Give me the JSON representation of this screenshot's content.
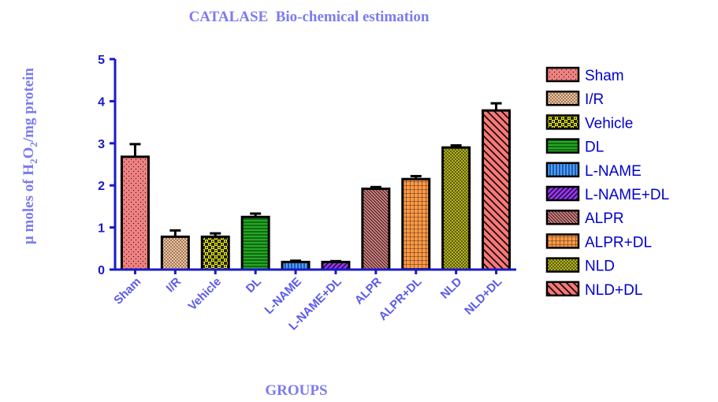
{
  "chart_data": {
    "type": "bar",
    "title": "CATALASE  Bio-chemical estimation",
    "xlabel": "GROUPS",
    "ylabel": {
      "prefix": "μ moles of H",
      "sub1": "2",
      "mid": "O",
      "sub2": "2",
      "suffix": "/mg protein"
    },
    "ylim": [
      0,
      5
    ],
    "yticks": [
      "0",
      "1",
      "2",
      "3",
      "4",
      "5"
    ],
    "categories": [
      "Sham",
      "I/R",
      "Vehicle",
      "DL",
      "L-NAME",
      "L-NAME+DL",
      "ALPR",
      "ALPR+DL",
      "NLD",
      "NLD+DL"
    ],
    "values": [
      2.68,
      0.78,
      0.78,
      1.25,
      0.18,
      0.18,
      1.92,
      2.15,
      2.9,
      3.78
    ],
    "errors": [
      0.3,
      0.15,
      0.08,
      0.08,
      0.03,
      0.02,
      0.04,
      0.07,
      0.05,
      0.17
    ],
    "legend_position": "right",
    "grid": false,
    "colors": {
      "title": "#7b7bf0",
      "axis": "#1a1ac8",
      "tick_labels": "#1a1ac8",
      "category_labels": "#5b5bea",
      "axis_title": "#7b7bf0",
      "legend_text": "#0000cc"
    },
    "bar_styles": [
      {
        "fill": "#f08080",
        "pattern": "dots"
      },
      {
        "fill": "#f5c29a",
        "pattern": "dense-dots"
      },
      {
        "fill": "#f2f200",
        "pattern": "checker"
      },
      {
        "fill": "#22aa22",
        "pattern": "horizontal"
      },
      {
        "fill": "#4aa0ff",
        "pattern": "vertical"
      },
      {
        "fill": "#9933ff",
        "pattern": "diag-right"
      },
      {
        "fill": "#d98080",
        "pattern": "diag-left"
      },
      {
        "fill": "#ff9944",
        "pattern": "grid"
      },
      {
        "fill": "#c8c800",
        "pattern": "diag-cross"
      },
      {
        "fill": "#ff7777",
        "pattern": "diag-left-wide"
      }
    ]
  }
}
